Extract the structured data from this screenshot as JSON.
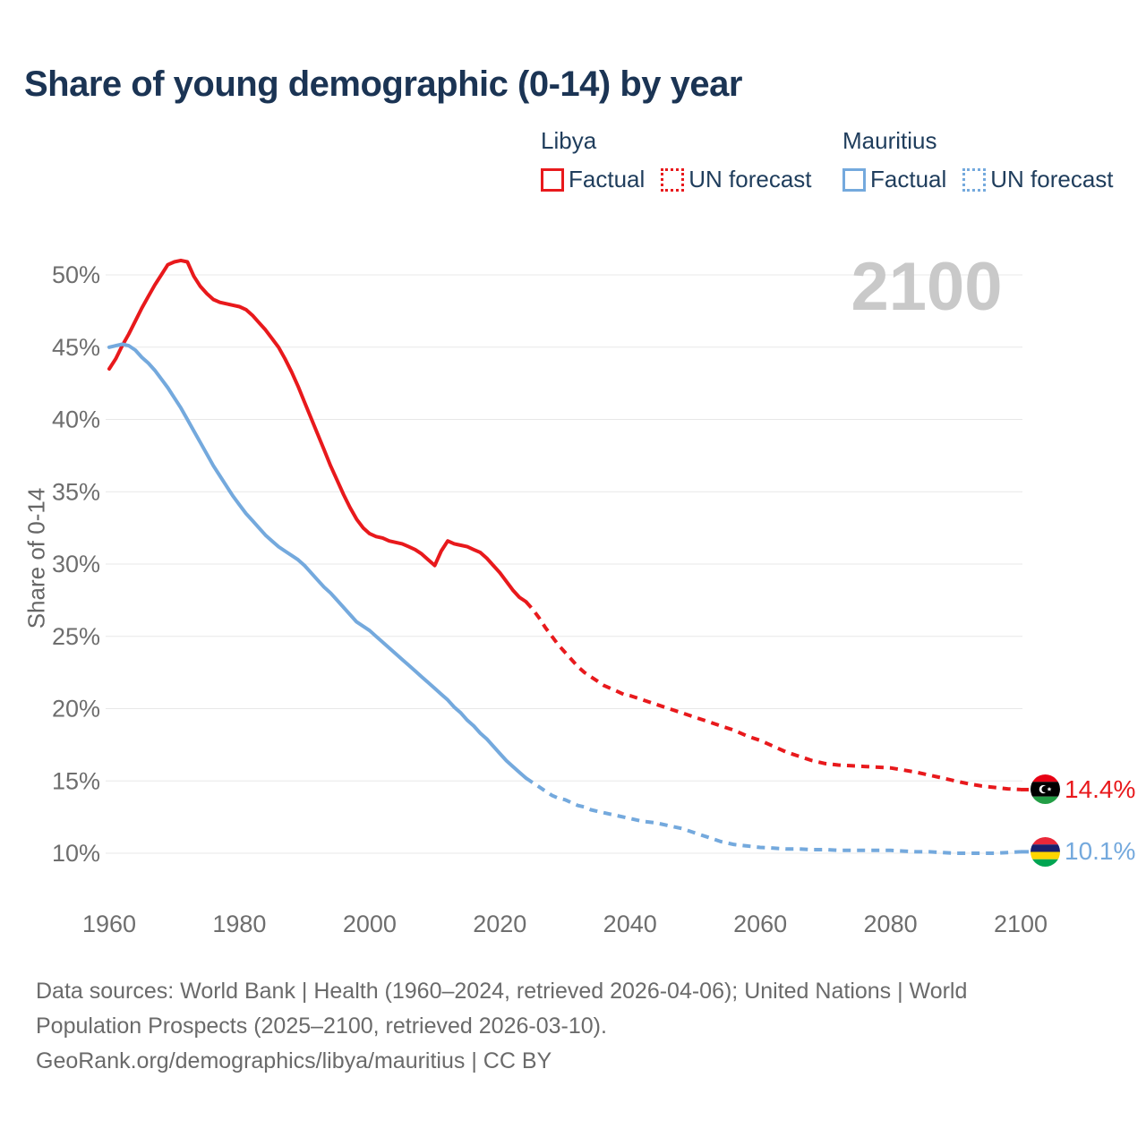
{
  "title": "Share of young demographic (0-14) by year",
  "watermark": "2100",
  "legend": {
    "groups": [
      {
        "country": "Libya",
        "color": "#e8191c",
        "items": [
          {
            "label": "Factual",
            "style": "solid"
          },
          {
            "label": "UN forecast",
            "style": "dashed"
          }
        ]
      },
      {
        "country": "Mauritius",
        "color": "#74a9dd",
        "items": [
          {
            "label": "Factual",
            "style": "solid"
          },
          {
            "label": "UN forecast",
            "style": "dashed"
          }
        ]
      }
    ]
  },
  "chart_data": {
    "type": "line",
    "title": "Share of young demographic (0-14) by year",
    "xlabel": "",
    "ylabel": "Share of 0-14",
    "xlim": [
      1960,
      2100
    ],
    "ylim": [
      10,
      50
    ],
    "x_ticks": [
      1960,
      1980,
      2000,
      2020,
      2040,
      2060,
      2080,
      2100
    ],
    "y_ticks": [
      10,
      15,
      20,
      25,
      30,
      35,
      40,
      45,
      50
    ],
    "y_tick_suffix": "%",
    "grid": "horizontal",
    "legend_position": "top-right",
    "series": [
      {
        "name": "Libya Factual",
        "color": "#e8191c",
        "dash": false,
        "points": [
          [
            1960,
            43.5
          ],
          [
            1961,
            44.2
          ],
          [
            1962,
            45.1
          ],
          [
            1963,
            45.9
          ],
          [
            1964,
            46.8
          ],
          [
            1965,
            47.7
          ],
          [
            1966,
            48.5
          ],
          [
            1967,
            49.3
          ],
          [
            1968,
            50.0
          ],
          [
            1969,
            50.7
          ],
          [
            1970,
            50.9
          ],
          [
            1971,
            51.0
          ],
          [
            1972,
            50.9
          ],
          [
            1973,
            49.9
          ],
          [
            1974,
            49.2
          ],
          [
            1975,
            48.7
          ],
          [
            1976,
            48.3
          ],
          [
            1977,
            48.1
          ],
          [
            1978,
            48.0
          ],
          [
            1979,
            47.9
          ],
          [
            1980,
            47.8
          ],
          [
            1981,
            47.6
          ],
          [
            1982,
            47.2
          ],
          [
            1983,
            46.7
          ],
          [
            1984,
            46.2
          ],
          [
            1985,
            45.6
          ],
          [
            1986,
            45.0
          ],
          [
            1987,
            44.2
          ],
          [
            1988,
            43.3
          ],
          [
            1989,
            42.3
          ],
          [
            1990,
            41.2
          ],
          [
            1991,
            40.1
          ],
          [
            1992,
            39.0
          ],
          [
            1993,
            37.9
          ],
          [
            1994,
            36.8
          ],
          [
            1995,
            35.8
          ],
          [
            1996,
            34.8
          ],
          [
            1997,
            33.9
          ],
          [
            1998,
            33.1
          ],
          [
            1999,
            32.5
          ],
          [
            2000,
            32.1
          ],
          [
            2001,
            31.9
          ],
          [
            2002,
            31.8
          ],
          [
            2003,
            31.6
          ],
          [
            2004,
            31.5
          ],
          [
            2005,
            31.4
          ],
          [
            2006,
            31.2
          ],
          [
            2007,
            31.0
          ],
          [
            2008,
            30.7
          ],
          [
            2009,
            30.3
          ],
          [
            2010,
            29.9
          ],
          [
            2011,
            30.9
          ],
          [
            2012,
            31.6
          ],
          [
            2013,
            31.4
          ],
          [
            2014,
            31.3
          ],
          [
            2015,
            31.2
          ],
          [
            2016,
            31.0
          ],
          [
            2017,
            30.8
          ],
          [
            2018,
            30.4
          ],
          [
            2019,
            29.9
          ],
          [
            2020,
            29.4
          ],
          [
            2021,
            28.8
          ],
          [
            2022,
            28.2
          ],
          [
            2023,
            27.7
          ],
          [
            2024,
            27.4
          ]
        ]
      },
      {
        "name": "Libya UN forecast",
        "color": "#e8191c",
        "dash": true,
        "end_label": "14.4%",
        "end_flag": "libya",
        "points": [
          [
            2024,
            27.4
          ],
          [
            2025,
            26.9
          ],
          [
            2026,
            26.3
          ],
          [
            2027,
            25.6
          ],
          [
            2028,
            25.0
          ],
          [
            2029,
            24.4
          ],
          [
            2030,
            23.9
          ],
          [
            2031,
            23.4
          ],
          [
            2032,
            22.9
          ],
          [
            2033,
            22.5
          ],
          [
            2034,
            22.2
          ],
          [
            2035,
            21.9
          ],
          [
            2036,
            21.6
          ],
          [
            2037,
            21.4
          ],
          [
            2038,
            21.2
          ],
          [
            2039,
            21.0
          ],
          [
            2040,
            20.9
          ],
          [
            2042,
            20.6
          ],
          [
            2044,
            20.3
          ],
          [
            2046,
            20.0
          ],
          [
            2048,
            19.7
          ],
          [
            2050,
            19.4
          ],
          [
            2052,
            19.1
          ],
          [
            2054,
            18.8
          ],
          [
            2056,
            18.5
          ],
          [
            2058,
            18.1
          ],
          [
            2060,
            17.8
          ],
          [
            2062,
            17.4
          ],
          [
            2064,
            17.0
          ],
          [
            2066,
            16.7
          ],
          [
            2068,
            16.4
          ],
          [
            2070,
            16.2
          ],
          [
            2072,
            16.1
          ],
          [
            2074,
            16.05
          ],
          [
            2076,
            16.0
          ],
          [
            2078,
            15.95
          ],
          [
            2080,
            15.9
          ],
          [
            2082,
            15.75
          ],
          [
            2084,
            15.6
          ],
          [
            2086,
            15.4
          ],
          [
            2088,
            15.2
          ],
          [
            2090,
            15.0
          ],
          [
            2092,
            14.8
          ],
          [
            2094,
            14.65
          ],
          [
            2096,
            14.55
          ],
          [
            2098,
            14.45
          ],
          [
            2100,
            14.4
          ]
        ]
      },
      {
        "name": "Mauritius Factual",
        "color": "#74a9dd",
        "dash": false,
        "points": [
          [
            1960,
            45.0
          ],
          [
            1961,
            45.1
          ],
          [
            1962,
            45.2
          ],
          [
            1963,
            45.1
          ],
          [
            1964,
            44.8
          ],
          [
            1965,
            44.3
          ],
          [
            1966,
            43.9
          ],
          [
            1967,
            43.4
          ],
          [
            1968,
            42.8
          ],
          [
            1969,
            42.2
          ],
          [
            1970,
            41.5
          ],
          [
            1971,
            40.8
          ],
          [
            1972,
            40.0
          ],
          [
            1973,
            39.2
          ],
          [
            1974,
            38.4
          ],
          [
            1975,
            37.6
          ],
          [
            1976,
            36.8
          ],
          [
            1977,
            36.1
          ],
          [
            1978,
            35.4
          ],
          [
            1979,
            34.7
          ],
          [
            1980,
            34.1
          ],
          [
            1981,
            33.5
          ],
          [
            1982,
            33.0
          ],
          [
            1983,
            32.5
          ],
          [
            1984,
            32.0
          ],
          [
            1985,
            31.6
          ],
          [
            1986,
            31.2
          ],
          [
            1987,
            30.9
          ],
          [
            1988,
            30.6
          ],
          [
            1989,
            30.3
          ],
          [
            1990,
            29.9
          ],
          [
            1991,
            29.4
          ],
          [
            1992,
            28.9
          ],
          [
            1993,
            28.4
          ],
          [
            1994,
            28.0
          ],
          [
            1995,
            27.5
          ],
          [
            1996,
            27.0
          ],
          [
            1997,
            26.5
          ],
          [
            1998,
            26.0
          ],
          [
            1999,
            25.7
          ],
          [
            2000,
            25.4
          ],
          [
            2001,
            25.0
          ],
          [
            2002,
            24.6
          ],
          [
            2003,
            24.2
          ],
          [
            2004,
            23.8
          ],
          [
            2005,
            23.4
          ],
          [
            2006,
            23.0
          ],
          [
            2007,
            22.6
          ],
          [
            2008,
            22.2
          ],
          [
            2009,
            21.8
          ],
          [
            2010,
            21.4
          ],
          [
            2011,
            21.0
          ],
          [
            2012,
            20.6
          ],
          [
            2013,
            20.1
          ],
          [
            2014,
            19.7
          ],
          [
            2015,
            19.2
          ],
          [
            2016,
            18.8
          ],
          [
            2017,
            18.3
          ],
          [
            2018,
            17.9
          ],
          [
            2019,
            17.4
          ],
          [
            2020,
            16.9
          ],
          [
            2021,
            16.4
          ],
          [
            2022,
            16.0
          ],
          [
            2023,
            15.6
          ],
          [
            2024,
            15.2
          ]
        ]
      },
      {
        "name": "Mauritius UN forecast",
        "color": "#74a9dd",
        "dash": true,
        "end_label": "10.1%",
        "end_flag": "mauritius",
        "points": [
          [
            2024,
            15.2
          ],
          [
            2025,
            14.9
          ],
          [
            2026,
            14.6
          ],
          [
            2027,
            14.3
          ],
          [
            2028,
            14.0
          ],
          [
            2029,
            13.8
          ],
          [
            2030,
            13.7
          ],
          [
            2031,
            13.5
          ],
          [
            2032,
            13.3
          ],
          [
            2033,
            13.2
          ],
          [
            2034,
            13.0
          ],
          [
            2035,
            12.9
          ],
          [
            2036,
            12.8
          ],
          [
            2037,
            12.7
          ],
          [
            2038,
            12.6
          ],
          [
            2040,
            12.4
          ],
          [
            2042,
            12.2
          ],
          [
            2044,
            12.1
          ],
          [
            2046,
            11.9
          ],
          [
            2048,
            11.7
          ],
          [
            2050,
            11.4
          ],
          [
            2052,
            11.1
          ],
          [
            2054,
            10.8
          ],
          [
            2056,
            10.6
          ],
          [
            2058,
            10.5
          ],
          [
            2060,
            10.4
          ],
          [
            2062,
            10.35
          ],
          [
            2064,
            10.3
          ],
          [
            2066,
            10.3
          ],
          [
            2068,
            10.25
          ],
          [
            2070,
            10.25
          ],
          [
            2072,
            10.2
          ],
          [
            2074,
            10.2
          ],
          [
            2076,
            10.2
          ],
          [
            2078,
            10.2
          ],
          [
            2080,
            10.2
          ],
          [
            2082,
            10.15
          ],
          [
            2084,
            10.1
          ],
          [
            2086,
            10.1
          ],
          [
            2088,
            10.05
          ],
          [
            2090,
            10.0
          ],
          [
            2092,
            10.0
          ],
          [
            2094,
            10.0
          ],
          [
            2096,
            10.0
          ],
          [
            2098,
            10.05
          ],
          [
            2100,
            10.1
          ]
        ]
      }
    ]
  },
  "footer": {
    "lines": [
      "Data sources: World Bank | Health (1960–2024, retrieved 2026-04-06); United Nations | World",
      "Population Prospects (2025–2100, retrieved 2026-03-10).",
      "GeoRank.org/demographics/libya/mauritius | CC BY"
    ]
  }
}
